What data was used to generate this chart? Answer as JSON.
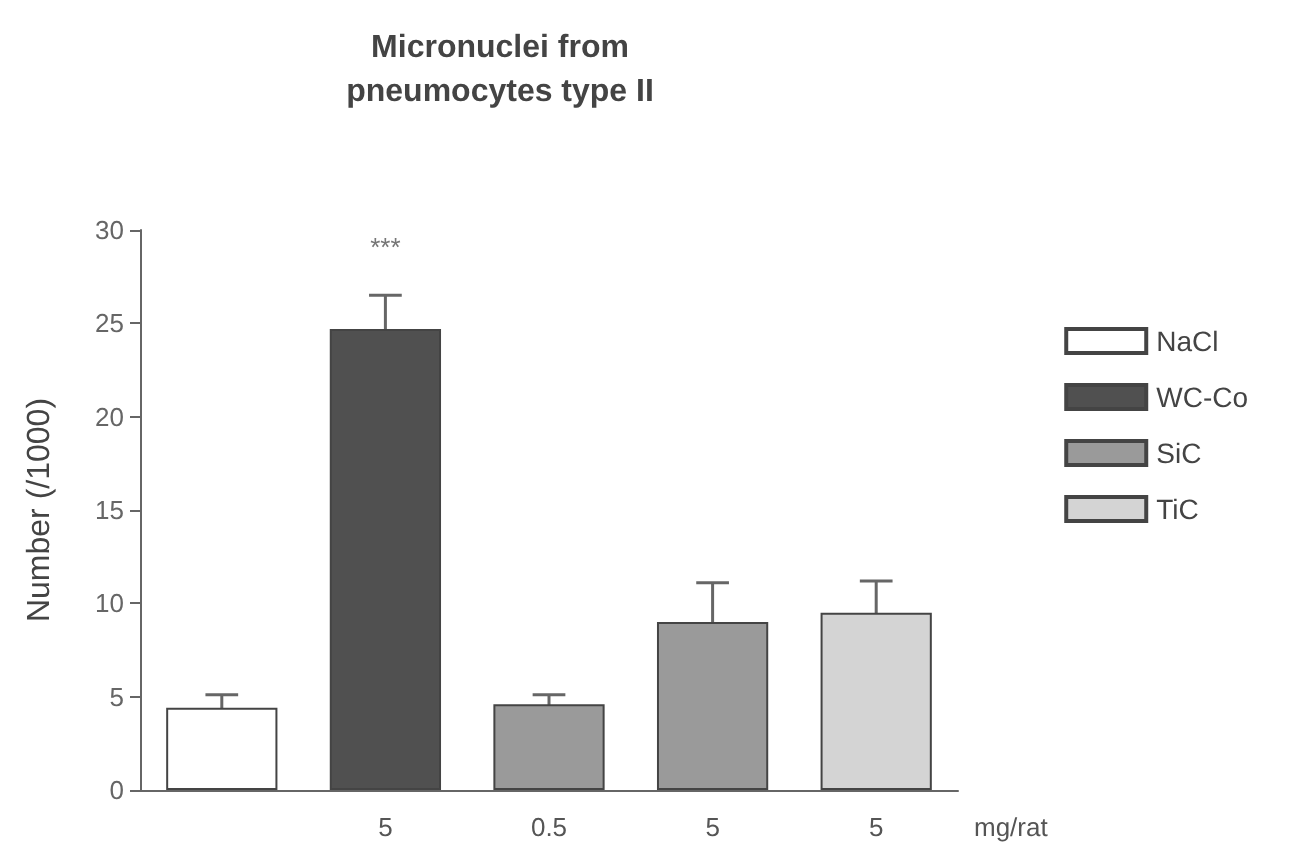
{
  "chart_data": {
    "type": "bar",
    "title": "Micronuclei from\npneumocytes type II",
    "ylabel": "Number (/1000)",
    "xlabel": "mg/rat",
    "categories": [
      null,
      "5",
      "0.5",
      "5",
      "5"
    ],
    "series": [
      {
        "name": "NaCl",
        "color": "#ffffff",
        "values": [
          4.4,
          null,
          null,
          null,
          null
        ],
        "errors": [
          0.7,
          null,
          null,
          null,
          null
        ]
      },
      {
        "name": "WC-Co",
        "color": "#505050",
        "values": [
          null,
          24.7,
          null,
          null,
          null
        ],
        "errors": [
          null,
          1.8,
          null,
          null,
          null
        ]
      },
      {
        "name": "SiC",
        "color": "#9a9a9a",
        "values": [
          null,
          null,
          4.6,
          9.0,
          null
        ],
        "errors": [
          null,
          null,
          0.5,
          2.1,
          null
        ]
      },
      {
        "name": "TiC",
        "color": "#d4d4d4",
        "values": [
          null,
          null,
          null,
          null,
          9.5
        ],
        "errors": [
          null,
          null,
          null,
          null,
          1.7
        ]
      }
    ],
    "annotations": [
      "***"
    ],
    "ylim": [
      0,
      30
    ],
    "yticks": [
      0,
      5,
      10,
      15,
      20,
      25,
      30
    ],
    "grid": false,
    "legend": "right"
  }
}
